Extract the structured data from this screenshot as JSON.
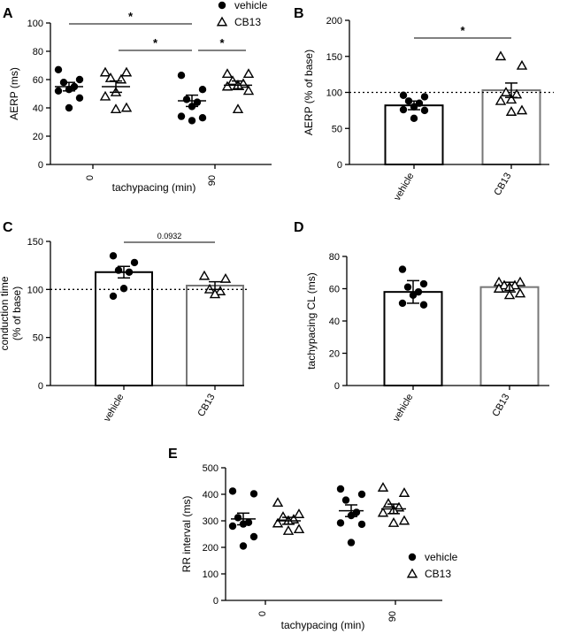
{
  "chart_data": [
    {
      "panel": "A",
      "type": "scatter",
      "ylabel": "AERP (ms)",
      "xlabel": "tachypacing (min)",
      "ylim": [
        0,
        100
      ],
      "yticks": [
        0,
        20,
        40,
        60,
        80,
        100
      ],
      "categories": [
        "0",
        "90"
      ],
      "legend": {
        "placement": "top-right",
        "entries": [
          "vehicle",
          "CB13"
        ]
      },
      "series": [
        {
          "name": "vehicle",
          "category": "0",
          "values": [
            67,
            60,
            58,
            55,
            53,
            52,
            47,
            40
          ],
          "mean": 55,
          "sem": 3
        },
        {
          "name": "CB13",
          "category": "0",
          "values": [
            65,
            65,
            61,
            60,
            51,
            48,
            40,
            39
          ],
          "mean": 55,
          "sem": 4
        },
        {
          "name": "vehicle",
          "category": "90",
          "values": [
            63,
            53,
            46,
            44,
            41,
            34,
            33,
            31
          ],
          "mean": 45,
          "sem": 4
        },
        {
          "name": "CB13",
          "category": "90",
          "values": [
            64,
            64,
            59,
            57,
            56,
            55,
            52,
            39
          ],
          "mean": 56,
          "sem": 3
        }
      ],
      "annotations": [
        "*",
        "*",
        "*"
      ]
    },
    {
      "panel": "B",
      "type": "bar",
      "ylabel": "AERP (% of base)",
      "categories": [
        "vehicle",
        "CB13"
      ],
      "ylim": [
        0,
        200
      ],
      "yticks": [
        0,
        50,
        100,
        150,
        200
      ],
      "reference_line": 100,
      "bars": [
        {
          "category": "vehicle",
          "mean": 82,
          "sem": 6,
          "points": [
            96,
            94,
            88,
            85,
            80,
            76,
            75,
            64
          ]
        },
        {
          "category": "CB13",
          "mean": 103,
          "sem": 10,
          "points": [
            150,
            137,
            100,
            97,
            90,
            88,
            75,
            73
          ]
        }
      ],
      "annotations": [
        "*"
      ]
    },
    {
      "panel": "C",
      "type": "bar",
      "ylabel": "conduction time",
      "ylabel2": "(% of base)",
      "categories": [
        "vehicle",
        "CB13"
      ],
      "ylim": [
        0,
        150
      ],
      "yticks": [
        0,
        50,
        100,
        150
      ],
      "reference_line": 100,
      "bars": [
        {
          "category": "vehicle",
          "mean": 118,
          "sem": 6,
          "points": [
            135,
            128,
            120,
            118,
            101,
            93
          ]
        },
        {
          "category": "CB13",
          "mean": 104,
          "sem": 4,
          "points": [
            114,
            111,
            100,
            98,
            95
          ]
        }
      ],
      "annotations": [
        "0.0932"
      ]
    },
    {
      "panel": "D",
      "type": "bar",
      "ylabel": "tachypacing CL (ms)",
      "categories": [
        "vehicle",
        "CB13"
      ],
      "ylim": [
        0,
        80
      ],
      "yticks": [
        0,
        20,
        40,
        60,
        80
      ],
      "bars": [
        {
          "category": "vehicle",
          "mean": 58,
          "sem": 7,
          "points": [
            72,
            63,
            61,
            58,
            56,
            51,
            50
          ]
        },
        {
          "category": "CB13",
          "mean": 61,
          "sem": 3,
          "points": [
            64,
            64,
            62,
            62,
            61,
            60,
            57,
            56
          ]
        }
      ]
    },
    {
      "panel": "E",
      "type": "scatter",
      "ylabel": "RR interval (ms)",
      "xlabel": "tachypacing (min)",
      "ylim": [
        0,
        500
      ],
      "yticks": [
        0,
        100,
        200,
        300,
        400,
        500
      ],
      "categories": [
        "0",
        "90"
      ],
      "legend": {
        "placement": "bottom-right",
        "entries": [
          "vehicle",
          "CB13"
        ]
      },
      "series": [
        {
          "name": "vehicle",
          "category": "0",
          "values": [
            412,
            402,
            312,
            294,
            288,
            280,
            240,
            205
          ],
          "mean": 307,
          "sem": 22
        },
        {
          "name": "CB13",
          "category": "0",
          "values": [
            368,
            325,
            315,
            305,
            300,
            290,
            268,
            262
          ],
          "mean": 300,
          "sem": 13
        },
        {
          "name": "vehicle",
          "category": "90",
          "values": [
            420,
            400,
            378,
            332,
            320,
            292,
            287,
            218
          ],
          "mean": 338,
          "sem": 22
        },
        {
          "name": "CB13",
          "category": "90",
          "values": [
            425,
            405,
            365,
            350,
            340,
            330,
            300,
            292
          ],
          "mean": 345,
          "sem": 18
        }
      ]
    }
  ]
}
